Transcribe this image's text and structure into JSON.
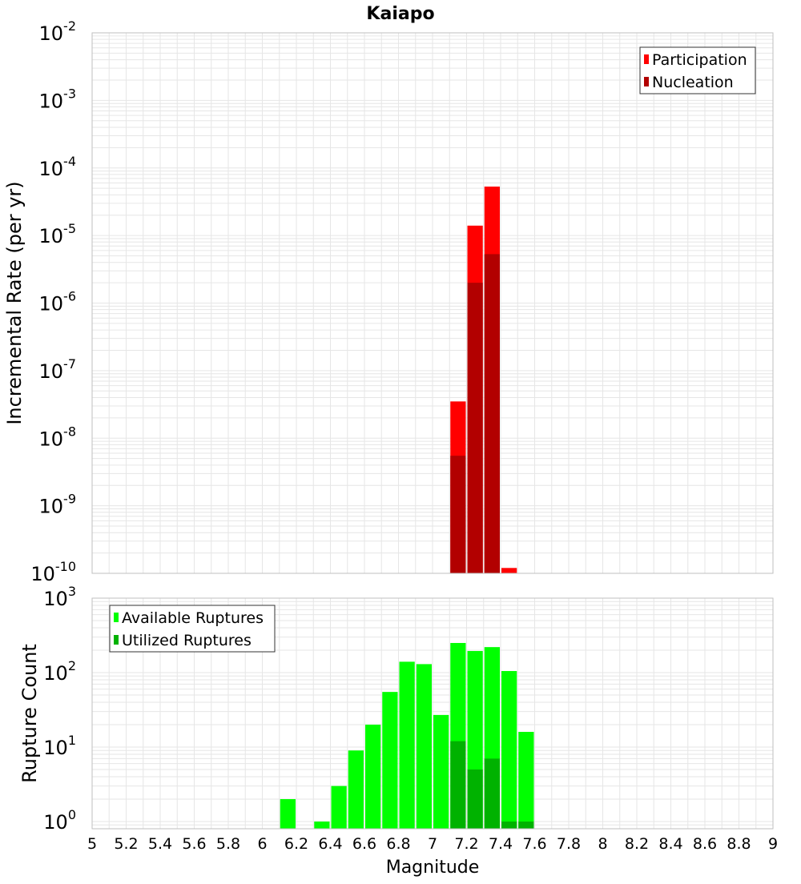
{
  "title": "Kaiapo",
  "colors": {
    "participation": "#ff0000",
    "nucleation": "#b20000",
    "available": "#00ff00",
    "utilized": "#00b200",
    "grid": "#e6e6e6",
    "frame": "#bfbfbf"
  },
  "chart_data": [
    {
      "type": "bar",
      "title": "Kaiapo",
      "xlabel": "",
      "ylabel": "Incremental Rate (per yr)",
      "y_scale": "log",
      "ylim": [
        1e-10,
        0.01
      ],
      "xlim": [
        5,
        9
      ],
      "bin_width": 0.1,
      "y_tick_labels": [
        {
          "base": "10",
          "exp": "-2",
          "value": 0.01
        },
        {
          "base": "10",
          "exp": "-3",
          "value": 0.001
        },
        {
          "base": "10",
          "exp": "-4",
          "value": 0.0001
        },
        {
          "base": "10",
          "exp": "-5",
          "value": 1e-05
        },
        {
          "base": "10",
          "exp": "-6",
          "value": 1e-06
        },
        {
          "base": "10",
          "exp": "-7",
          "value": 1e-07
        },
        {
          "base": "10",
          "exp": "-8",
          "value": 1e-08
        },
        {
          "base": "10",
          "exp": "-9",
          "value": 1e-09
        },
        {
          "base": "10",
          "exp": "-10",
          "value": 1e-10
        }
      ],
      "legend": {
        "position": "top-right",
        "entries": [
          "Participation",
          "Nucleation"
        ]
      },
      "grid": true,
      "series": [
        {
          "name": "Participation",
          "x": [
            7.15,
            7.25,
            7.35,
            7.45
          ],
          "values": [
            3.5e-08,
            1.4e-05,
            5.3e-05,
            1.2e-10
          ]
        },
        {
          "name": "Nucleation",
          "x": [
            7.15,
            7.25,
            7.35
          ],
          "values": [
            5.5e-09,
            2e-06,
            5.3e-06
          ]
        }
      ]
    },
    {
      "type": "bar",
      "xlabel": "Magnitude",
      "ylabel": "Rupture Count",
      "y_scale": "log",
      "ylim": [
        0.8,
        1000
      ],
      "xlim": [
        5,
        9
      ],
      "bin_width": 0.1,
      "y_tick_labels": [
        {
          "base": "10",
          "exp": "3",
          "value": 1000
        },
        {
          "base": "10",
          "exp": "2",
          "value": 100
        },
        {
          "base": "10",
          "exp": "1",
          "value": 10
        },
        {
          "base": "10",
          "exp": "0",
          "value": 1
        }
      ],
      "x_tick_labels": [
        "5",
        "5.2",
        "5.4",
        "5.6",
        "5.8",
        "6",
        "6.2",
        "6.4",
        "6.6",
        "6.8",
        "7",
        "7.2",
        "7.4",
        "7.6",
        "7.8",
        "8",
        "8.2",
        "8.4",
        "8.6",
        "8.8",
        "9"
      ],
      "legend": {
        "position": "top-left",
        "entries": [
          "Available Ruptures",
          "Utilized Ruptures"
        ]
      },
      "grid": true,
      "series": [
        {
          "name": "Available Ruptures",
          "x": [
            6.15,
            6.35,
            6.45,
            6.55,
            6.65,
            6.75,
            6.85,
            6.95,
            7.05,
            7.15,
            7.25,
            7.35,
            7.45,
            7.55
          ],
          "values": [
            2,
            1,
            3,
            9,
            20,
            55,
            140,
            130,
            27,
            250,
            195,
            220,
            105,
            16
          ]
        },
        {
          "name": "Utilized Ruptures",
          "x": [
            7.15,
            7.25,
            7.35,
            7.45,
            7.55
          ],
          "values": [
            12,
            5,
            7,
            1,
            1
          ]
        }
      ]
    }
  ]
}
